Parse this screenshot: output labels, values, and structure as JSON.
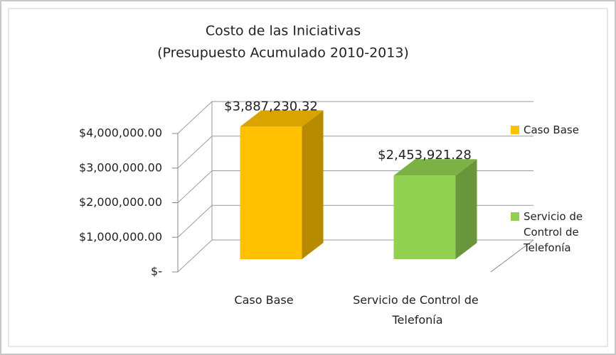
{
  "chart_data": {
    "type": "bar",
    "title": [
      "Costo de las Iniciativas",
      "(Presupuesto Acumulado 2010-2013)"
    ],
    "categories": [
      "Caso Base",
      "Servicio de Control de Telefonía"
    ],
    "values": [
      3887230.32,
      2453921.28
    ],
    "value_labels": [
      "$3,887,230.32",
      "$2,453,921.28"
    ],
    "colors": [
      "#ffc000",
      "#92d050"
    ],
    "ylim": [
      0,
      4000000
    ],
    "yticks": [
      {
        "value": 0,
        "label": "$-"
      },
      {
        "value": 1000000,
        "label": "$1,000,000.00"
      },
      {
        "value": 2000000,
        "label": "$2,000,000.00"
      },
      {
        "value": 3000000,
        "label": "$3,000,000.00"
      },
      {
        "value": 4000000,
        "label": "$4,000,000.00"
      }
    ],
    "grid": true,
    "legend": "right"
  }
}
